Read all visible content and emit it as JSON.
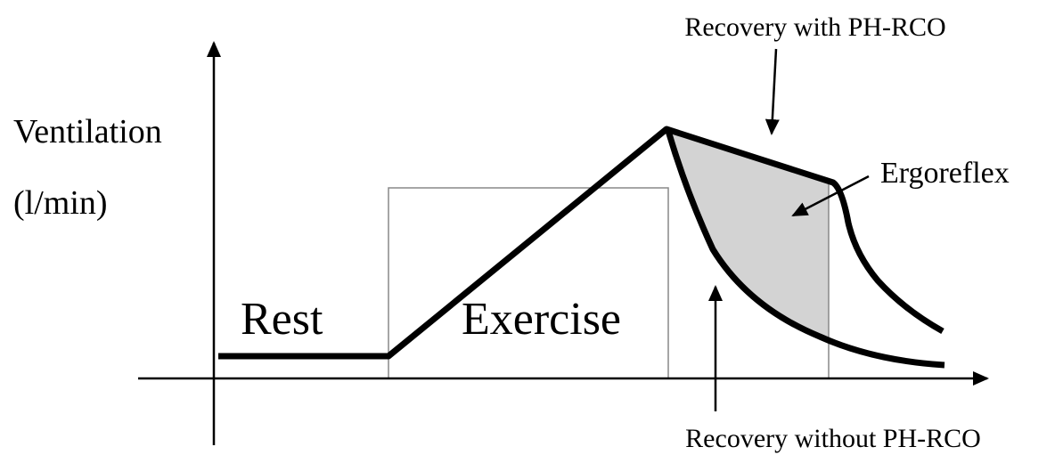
{
  "axis_label": {
    "line1": "Ventilation",
    "line2": "(l/min)"
  },
  "phases": {
    "rest": "Rest",
    "exercise": "Exercise"
  },
  "annotations": {
    "with": "Recovery with PH-RCO",
    "ergoreflex": "Ergoreflex",
    "without": "Recovery without PH-RCO"
  }
}
